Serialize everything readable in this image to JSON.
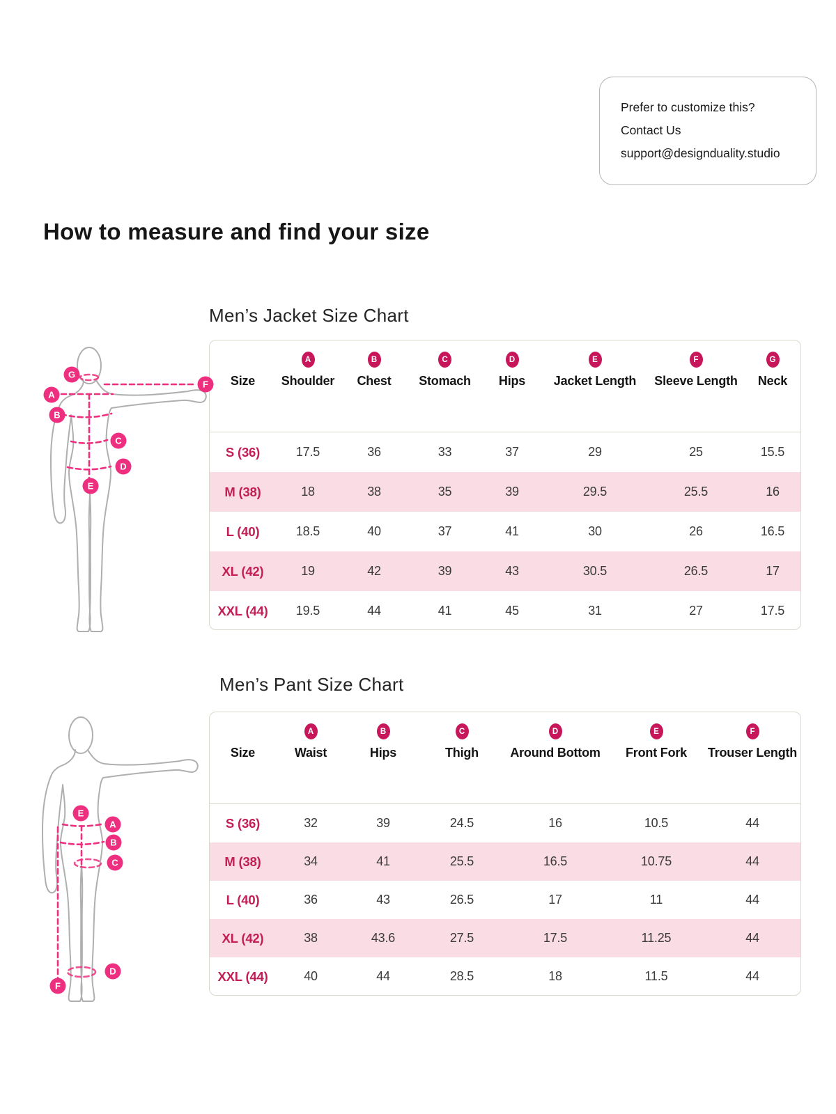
{
  "page_title": "How to measure and find your size",
  "contact_card": {
    "line1": "Prefer to customize this?",
    "line2": "Contact Us",
    "line3": "support@designduality.studio"
  },
  "jacket_chart": {
    "title": "Men’s Jacket Size Chart",
    "columns": [
      {
        "letter": "",
        "label": "Size"
      },
      {
        "letter": "A",
        "label": "Shoulder"
      },
      {
        "letter": "B",
        "label": "Chest"
      },
      {
        "letter": "C",
        "label": "Stomach"
      },
      {
        "letter": "D",
        "label": "Hips"
      },
      {
        "letter": "E",
        "label": "Jacket Length"
      },
      {
        "letter": "F",
        "label": "Sleeve Length"
      },
      {
        "letter": "G",
        "label": "Neck"
      }
    ],
    "rows": [
      {
        "size": "S (36)",
        "values": [
          "17.5",
          "36",
          "33",
          "37",
          "29",
          "25",
          "15.5"
        ]
      },
      {
        "size": "M (38)",
        "values": [
          "18",
          "38",
          "35",
          "39",
          "29.5",
          "25.5",
          "16"
        ]
      },
      {
        "size": "L (40)",
        "values": [
          "18.5",
          "40",
          "37",
          "41",
          "30",
          "26",
          "16.5"
        ]
      },
      {
        "size": "XL (42)",
        "values": [
          "19",
          "42",
          "39",
          "43",
          "30.5",
          "26.5",
          "17"
        ]
      },
      {
        "size": "XXL (44)",
        "values": [
          "19.5",
          "44",
          "41",
          "45",
          "31",
          "27",
          "17.5"
        ]
      }
    ]
  },
  "pant_chart": {
    "title": "Men’s Pant Size Chart",
    "columns": [
      {
        "letter": "",
        "label": "Size"
      },
      {
        "letter": "A",
        "label": "Waist"
      },
      {
        "letter": "B",
        "label": "Hips"
      },
      {
        "letter": "C",
        "label": "Thigh"
      },
      {
        "letter": "D",
        "label": "Around Bottom"
      },
      {
        "letter": "E",
        "label": "Front Fork"
      },
      {
        "letter": "F",
        "label": "Trouser Length"
      }
    ],
    "rows": [
      {
        "size": "S (36)",
        "values": [
          "32",
          "39",
          "24.5",
          "16",
          "10.5",
          "44"
        ]
      },
      {
        "size": "M (38)",
        "values": [
          "34",
          "41",
          "25.5",
          "16.5",
          "10.75",
          "44"
        ]
      },
      {
        "size": "L (40)",
        "values": [
          "36",
          "43",
          "26.5",
          "17",
          "11",
          "44"
        ]
      },
      {
        "size": "XL (42)",
        "values": [
          "38",
          "43.6",
          "27.5",
          "17.5",
          "11.25",
          "44"
        ]
      },
      {
        "size": "XXL (44)",
        "values": [
          "40",
          "44",
          "28.5",
          "18",
          "11.5",
          "44"
        ]
      }
    ]
  },
  "jacket_figure": {
    "badges": [
      "G",
      "A",
      "B",
      "C",
      "D",
      "E",
      "F"
    ]
  },
  "pant_figure": {
    "badges": [
      "E",
      "A",
      "B",
      "C",
      "D",
      "F"
    ]
  },
  "colors": {
    "accent_pink": "#EE2F7F",
    "header_badge": "#C7175A",
    "size_label": "#C41E56",
    "row_highlight": "#FADCE4",
    "table_border": "#D9D9CE",
    "figure_outline": "#AFAFAF"
  }
}
